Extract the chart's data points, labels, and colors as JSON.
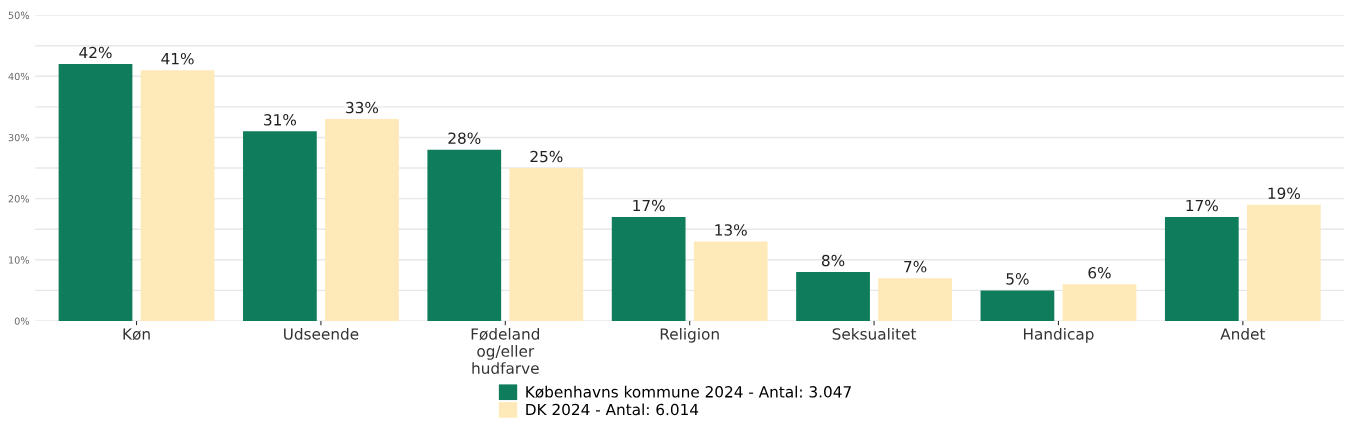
{
  "chart_data": {
    "type": "bar",
    "categories": [
      "Køn",
      "Udseende",
      "Fødeland\nog/eller\nhudfarve",
      "Religion",
      "Seksualitet",
      "Handicap",
      "Andet"
    ],
    "series": [
      {
        "name": "Københavns kommune 2024 - Antal: 3.047",
        "color": "#0f7d5c",
        "values": [
          42,
          31,
          28,
          17,
          8,
          5,
          17
        ],
        "value_labels": [
          "42%",
          "31%",
          "28%",
          "17%",
          "8%",
          "5%",
          "17%"
        ]
      },
      {
        "name": "DK 2024 - Antal: 6.014",
        "color": "#feeab8",
        "values": [
          41,
          33,
          25,
          13,
          7,
          6,
          19
        ],
        "value_labels": [
          "41%",
          "33%",
          "25%",
          "13%",
          "7%",
          "6%",
          "19%"
        ]
      }
    ],
    "ylim": [
      0,
      50
    ],
    "yticks": [
      {
        "value": 0,
        "label": "0%"
      },
      {
        "value": 5,
        "label": null
      },
      {
        "value": 10,
        "label": "10%"
      },
      {
        "value": 15,
        "label": null
      },
      {
        "value": 20,
        "label": "20%"
      },
      {
        "value": 25,
        "label": null
      },
      {
        "value": 30,
        "label": "30%"
      },
      {
        "value": 35,
        "label": null
      },
      {
        "value": 40,
        "label": "40%"
      },
      {
        "value": 45,
        "label": null
      },
      {
        "value": 50,
        "label": "50%"
      }
    ],
    "grid": "y",
    "legend": "bottom"
  }
}
